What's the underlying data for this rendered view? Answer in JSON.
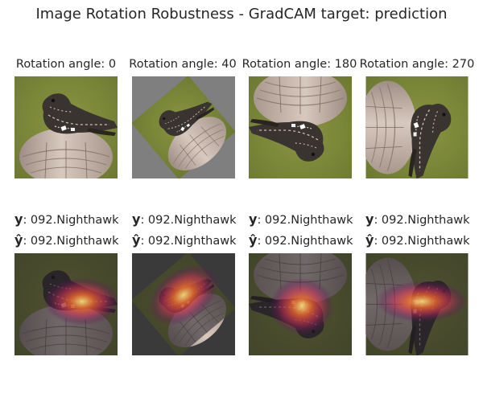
{
  "figure": {
    "title": "Image Rotation Robustness - GradCAM target: prediction"
  },
  "columns": [
    {
      "rotation_label": "Rotation angle: 0",
      "rotation_deg": 0,
      "true_symbol": "y",
      "true_label": ": 092.Nighthawk",
      "pred_symbol": "ŷ",
      "pred_label": ": 092.Nighthawk"
    },
    {
      "rotation_label": "Rotation angle: 40",
      "rotation_deg": 40,
      "true_symbol": "y",
      "true_label": ": 092.Nighthawk",
      "pred_symbol": "ŷ",
      "pred_label": ": 092.Nighthawk"
    },
    {
      "rotation_label": "Rotation angle: 180",
      "rotation_deg": 180,
      "true_symbol": "y",
      "true_label": ": 092.Nighthawk",
      "pred_symbol": "ŷ",
      "pred_label": ": 092.Nighthawk"
    },
    {
      "rotation_label": "Rotation angle: 270",
      "rotation_deg": 270,
      "true_symbol": "y",
      "true_label": ": 092.Nighthawk",
      "pred_symbol": "ŷ",
      "pred_label": ": 092.Nighthawk"
    }
  ],
  "colors": {
    "background_green": "#7e8a3a",
    "rotation_fill_gray": "#7f7f7f",
    "post_wood": "#c8b7ac",
    "bird_dark": "#3a3430",
    "heat_hot": "#ffe680",
    "heat_mid": "#e8452a",
    "heat_low": "#6a1a5a"
  }
}
